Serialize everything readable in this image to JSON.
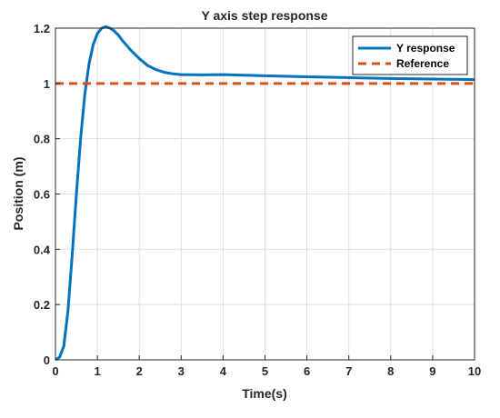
{
  "chart_data": {
    "type": "line",
    "title": "Y axis step response",
    "xlabel": "Time(s)",
    "ylabel": "Position (m)",
    "xlim": [
      0,
      10
    ],
    "ylim": [
      0,
      1.2
    ],
    "xticks": [
      0,
      1,
      2,
      3,
      4,
      5,
      6,
      7,
      8,
      9,
      10
    ],
    "yticks": [
      0,
      0.2,
      0.4,
      0.6,
      0.8,
      1,
      1.2
    ],
    "xtick_labels": [
      "0",
      "1",
      "2",
      "3",
      "4",
      "5",
      "6",
      "7",
      "8",
      "9",
      "10"
    ],
    "ytick_labels": [
      "0",
      "0.2",
      "0.4",
      "0.6",
      "0.8",
      "1",
      "1.2"
    ],
    "grid": true,
    "legend_position": "top-right",
    "series": [
      {
        "name": "Y response",
        "color": "#0072BD",
        "line_style": "solid",
        "x": [
          0,
          0.1,
          0.2,
          0.3,
          0.4,
          0.5,
          0.6,
          0.7,
          0.8,
          0.9,
          1.0,
          1.1,
          1.2,
          1.3,
          1.4,
          1.5,
          1.6,
          1.8,
          2.0,
          2.2,
          2.4,
          2.6,
          2.8,
          3.0,
          3.5,
          4.0,
          4.5,
          5.0,
          6.0,
          7.0,
          8.0,
          9.0,
          10.0
        ],
        "y": [
          0,
          0.01,
          0.05,
          0.18,
          0.38,
          0.6,
          0.8,
          0.96,
          1.07,
          1.14,
          1.18,
          1.2,
          1.205,
          1.2,
          1.19,
          1.175,
          1.155,
          1.12,
          1.09,
          1.065,
          1.05,
          1.04,
          1.035,
          1.032,
          1.031,
          1.032,
          1.03,
          1.028,
          1.024,
          1.021,
          1.018,
          1.016,
          1.014
        ]
      },
      {
        "name": "Reference",
        "color": "#D95319",
        "line_style": "dashed",
        "x": [
          0,
          10
        ],
        "y": [
          1,
          1
        ]
      }
    ]
  }
}
